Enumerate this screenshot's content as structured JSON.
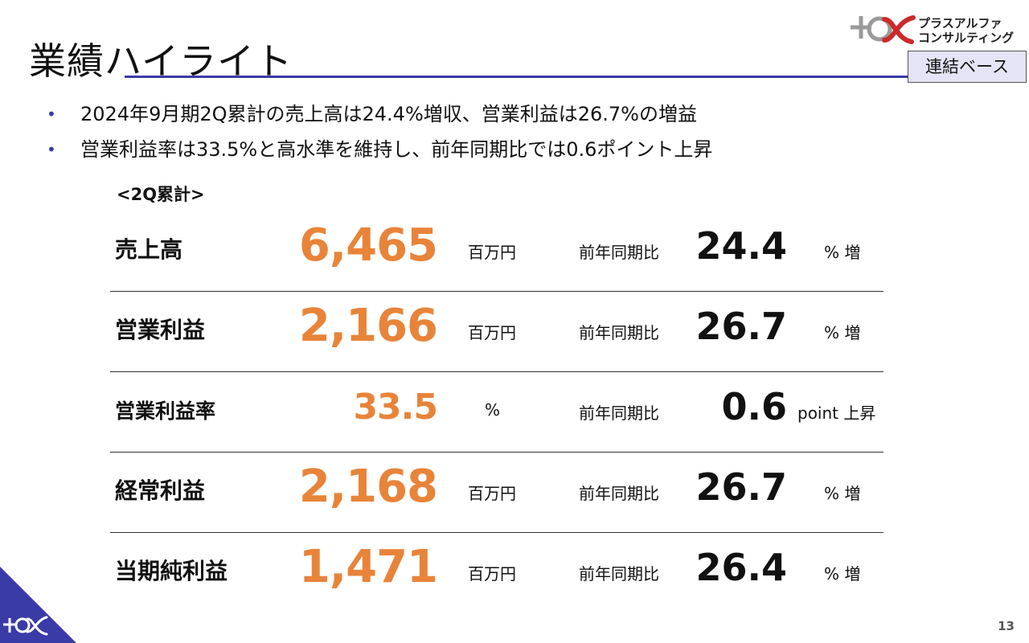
{
  "slide": {
    "title": "業績ハイライト",
    "basis_badge": "連結ベース",
    "page_number": "13"
  },
  "logo": {
    "line1": "プラスアルファ",
    "line2": "コンサルティング",
    "accent_color": "#cc2a2a",
    "mark_color": "#9a9a9a"
  },
  "bullets": [
    "2024年9月期2Q累計の売上高は24.4%増収、営業利益は26.7%の増益",
    "営業利益率は33.5%と高水準を維持し、前年同期比では0.6ポイント上昇"
  ],
  "section_label": "<2Q累計>",
  "colors": {
    "accent_orange": "#e8843a",
    "rule_blue": "#3b3ba8",
    "badge_bg": "#e4e4f6",
    "corner_blue": "#3b3ba8"
  },
  "metrics": [
    {
      "name": "売上高",
      "value": "6,465",
      "unit": "百万円",
      "compare": "前年同期比",
      "change": "24.4",
      "change_unit": "% 増"
    },
    {
      "name": "営業利益",
      "value": "2,166",
      "unit": "百万円",
      "compare": "前年同期比",
      "change": "26.7",
      "change_unit": "% 増"
    },
    {
      "name": "営業利益率",
      "value": "33.5",
      "unit": "%",
      "compare": "前年同期比",
      "change": "0.6",
      "change_unit": "point 上昇"
    },
    {
      "name": "経常利益",
      "value": "2,168",
      "unit": "百万円",
      "compare": "前年同期比",
      "change": "26.7",
      "change_unit": "% 増"
    },
    {
      "name": "当期純利益",
      "value": "1,471",
      "unit": "百万円",
      "compare": "前年同期比",
      "change": "26.4",
      "change_unit": "% 増"
    }
  ]
}
